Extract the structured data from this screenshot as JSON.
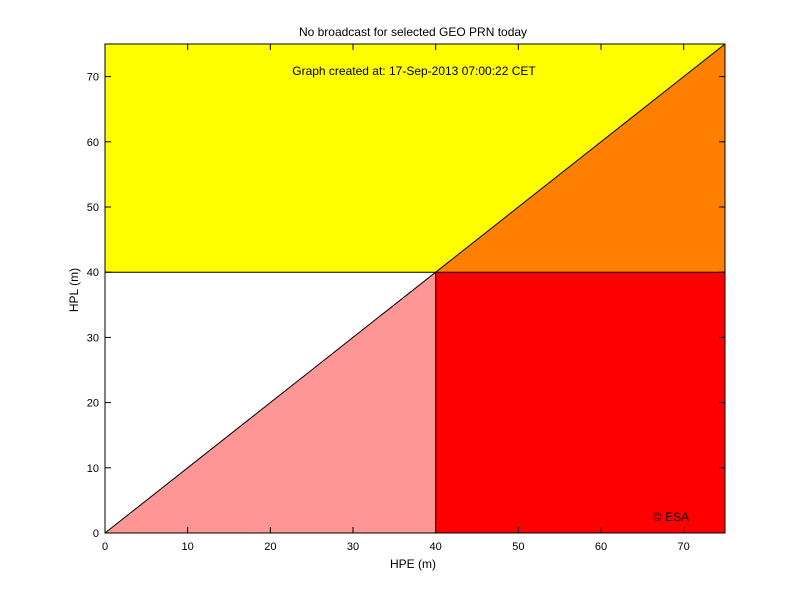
{
  "chart_data": {
    "type": "area",
    "title": "No broadcast for selected GEO PRN today",
    "subtitle": "Graph created at: 17-Sep-2013 07:00:22 CET",
    "annotation": "© ESA",
    "xlabel": "HPE (m)",
    "ylabel": "HPL (m)",
    "xlim": [
      0,
      75
    ],
    "ylim": [
      0,
      75
    ],
    "xticks": [
      0,
      10,
      20,
      30,
      40,
      50,
      60,
      70
    ],
    "yticks": [
      0,
      10,
      20,
      30,
      40,
      50,
      60,
      70
    ],
    "alert_limit": 40,
    "regions": [
      {
        "polygon": [
          [
            0,
            40
          ],
          [
            75,
            40
          ],
          [
            75,
            75
          ],
          [
            0,
            75
          ]
        ],
        "color": "#ffff00"
      },
      {
        "polygon": [
          [
            40,
            40
          ],
          [
            75,
            40
          ],
          [
            75,
            75
          ]
        ],
        "color": "#ff8000"
      },
      {
        "polygon": [
          [
            40,
            0
          ],
          [
            75,
            0
          ],
          [
            75,
            40
          ],
          [
            40,
            40
          ]
        ],
        "color": "#ff0000"
      },
      {
        "polygon": [
          [
            0,
            0
          ],
          [
            40,
            0
          ],
          [
            40,
            40
          ]
        ],
        "color": "#ff9696"
      }
    ],
    "points": []
  }
}
